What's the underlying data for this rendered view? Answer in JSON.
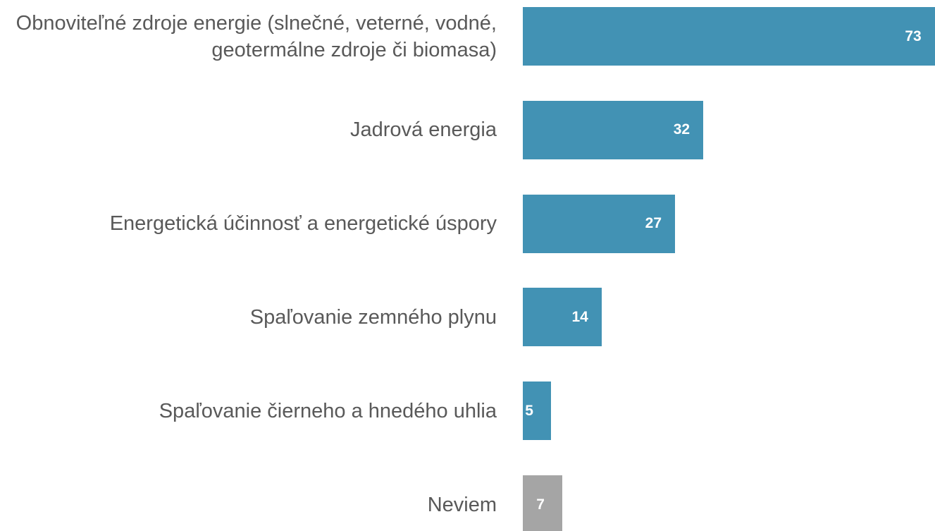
{
  "chart_data": {
    "type": "barh",
    "categories": [
      "Obnoviteľné zdroje energie (slnečné, veterné, vodné, geotermálne zdroje či biomasa)",
      "Jadrová energia",
      "Energetická účinnosť a energetické úspory",
      "Spaľovanie zemného plynu",
      "Spaľovanie čierneho a hnedého uhlia",
      "Neviem"
    ],
    "values": [
      73,
      32,
      27,
      14,
      5,
      7
    ],
    "colors": [
      "#4292b4",
      "#4292b4",
      "#4292b4",
      "#4292b4",
      "#4292b4",
      "#a5a5a5"
    ]
  }
}
